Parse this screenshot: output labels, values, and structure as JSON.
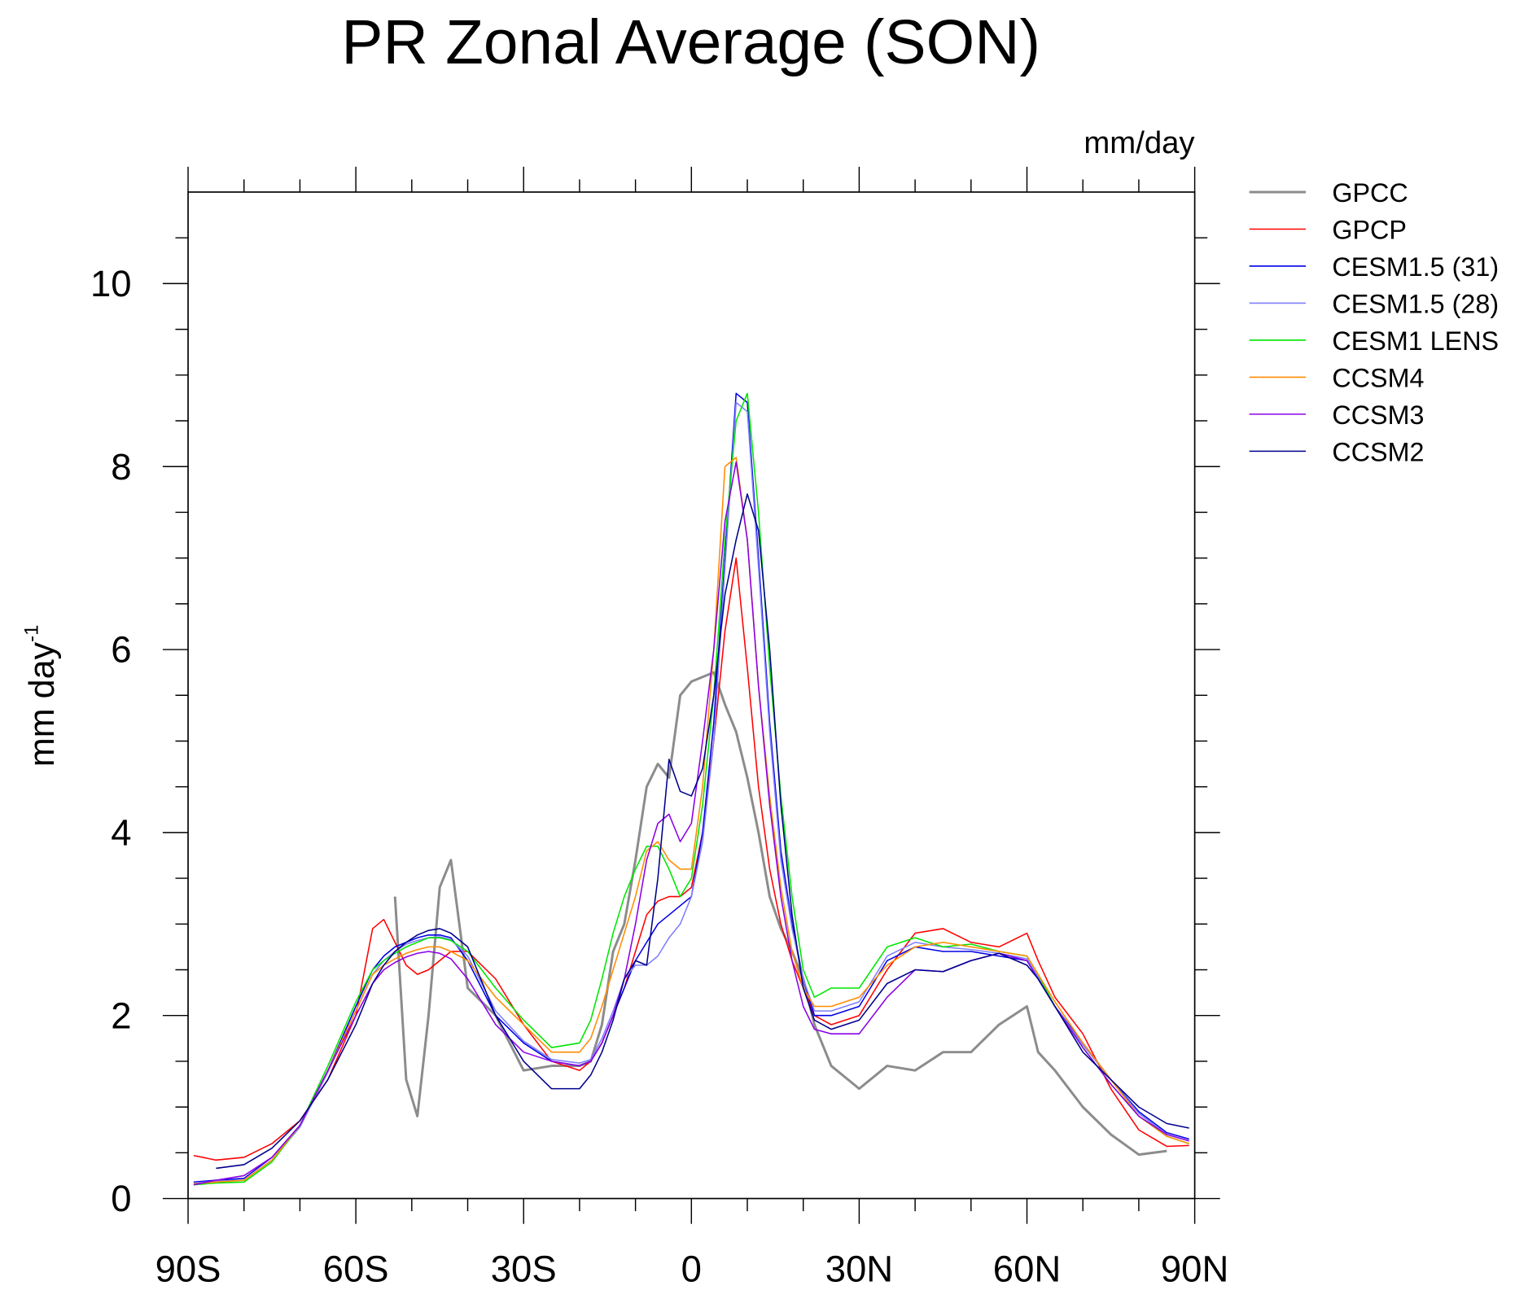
{
  "chart_data": {
    "type": "line",
    "title": "PR Zonal Average (SON)",
    "units": "mm/day",
    "ylabel": "mm day",
    "ylabel_sup": "-1",
    "xlim": [
      -90,
      90
    ],
    "ylim": [
      0,
      11
    ],
    "xticks": [
      {
        "value": -90,
        "label": "90S"
      },
      {
        "value": -60,
        "label": "60S"
      },
      {
        "value": -30,
        "label": "30S"
      },
      0,
      {
        "value": 30,
        "label": "30N"
      },
      {
        "value": 60,
        "label": "60N"
      },
      {
        "value": 90,
        "label": "90N"
      }
    ],
    "yticks": [
      0,
      2,
      4,
      6,
      8,
      10
    ],
    "legend": "outside-right",
    "x": [
      -89,
      -85,
      -80,
      -75,
      -70,
      -65,
      -60,
      -57,
      -55,
      -53,
      -51,
      -49,
      -47,
      -45,
      -43,
      -40,
      -35,
      -30,
      -25,
      -20,
      -18,
      -16,
      -14,
      -12,
      -10,
      -8,
      -6,
      -4,
      -2,
      0,
      2,
      4,
      6,
      8,
      10,
      12,
      14,
      16,
      18,
      20,
      22,
      25,
      30,
      35,
      40,
      45,
      50,
      55,
      60,
      62,
      65,
      70,
      75,
      80,
      85,
      89
    ],
    "series": [
      {
        "name": "GPCC",
        "color": "#8c8c8c",
        "width": 2.5,
        "values": [
          null,
          null,
          null,
          null,
          null,
          null,
          null,
          null,
          null,
          3.3,
          1.3,
          0.9,
          2.0,
          3.4,
          3.7,
          2.3,
          2.0,
          1.4,
          1.45,
          1.45,
          1.5,
          1.9,
          2.7,
          3.0,
          3.7,
          4.5,
          4.75,
          4.6,
          5.5,
          5.65,
          5.7,
          5.75,
          5.4,
          5.1,
          4.6,
          4.0,
          3.3,
          2.95,
          2.7,
          2.4,
          1.9,
          1.45,
          1.2,
          1.45,
          1.4,
          1.6,
          1.6,
          1.9,
          2.1,
          1.6,
          1.4,
          1.0,
          0.7,
          0.48,
          0.52,
          null
        ]
      },
      {
        "name": "GPCP",
        "color": "#ff0000",
        "width": 1.3,
        "values": [
          0.47,
          0.42,
          0.45,
          0.6,
          0.85,
          1.3,
          2.0,
          2.95,
          3.05,
          2.8,
          2.55,
          2.45,
          2.5,
          2.6,
          2.7,
          2.7,
          2.4,
          1.9,
          1.5,
          1.4,
          1.5,
          1.7,
          2.0,
          2.3,
          2.7,
          3.1,
          3.25,
          3.3,
          3.3,
          3.4,
          4.0,
          5.0,
          6.2,
          7.0,
          5.8,
          4.5,
          3.6,
          3.0,
          2.6,
          2.3,
          2.0,
          1.9,
          2.0,
          2.5,
          2.9,
          2.95,
          2.8,
          2.75,
          2.9,
          2.6,
          2.2,
          1.8,
          1.2,
          0.75,
          0.57,
          0.58
        ]
      },
      {
        "name": "CESM1.5 (31)",
        "color": "#0000e6",
        "width": 1.3,
        "values": [
          0.18,
          0.2,
          0.22,
          0.45,
          0.8,
          1.4,
          2.1,
          2.5,
          2.65,
          2.75,
          2.8,
          2.85,
          2.88,
          2.88,
          2.85,
          2.6,
          2.0,
          1.7,
          1.5,
          1.45,
          1.5,
          1.7,
          2.0,
          2.3,
          2.6,
          2.8,
          3.0,
          3.1,
          3.2,
          3.3,
          4.0,
          5.2,
          7.0,
          8.8,
          8.7,
          7.0,
          5.2,
          3.8,
          3.0,
          2.4,
          2.0,
          2.0,
          2.1,
          2.6,
          2.75,
          2.7,
          2.7,
          2.65,
          2.6,
          2.4,
          2.1,
          1.7,
          1.3,
          0.95,
          0.72,
          0.65
        ]
      },
      {
        "name": "CESM1.5 (28)",
        "color": "#7f7fff",
        "width": 1.3,
        "values": [
          0.17,
          0.19,
          0.2,
          0.42,
          0.78,
          1.38,
          2.05,
          2.45,
          2.6,
          2.7,
          2.78,
          2.82,
          2.85,
          2.86,
          2.83,
          2.65,
          2.05,
          1.72,
          1.52,
          1.48,
          1.52,
          1.75,
          2.05,
          2.4,
          2.55,
          2.55,
          2.65,
          2.85,
          3.0,
          3.3,
          3.9,
          5.0,
          6.9,
          8.7,
          8.6,
          6.9,
          5.1,
          3.7,
          2.95,
          2.4,
          2.05,
          2.05,
          2.15,
          2.65,
          2.8,
          2.75,
          2.72,
          2.68,
          2.62,
          2.42,
          2.1,
          1.68,
          1.3,
          0.93,
          0.7,
          0.63
        ]
      },
      {
        "name": "CESM1 LENS",
        "color": "#00e600",
        "width": 1.3,
        "values": [
          0.15,
          0.17,
          0.18,
          0.4,
          0.8,
          1.45,
          2.15,
          2.5,
          2.6,
          2.68,
          2.75,
          2.8,
          2.85,
          2.85,
          2.82,
          2.7,
          2.3,
          1.95,
          1.65,
          1.7,
          1.95,
          2.4,
          2.9,
          3.3,
          3.6,
          3.85,
          3.85,
          3.6,
          3.3,
          3.5,
          4.3,
          5.5,
          7.2,
          8.5,
          8.8,
          7.5,
          5.8,
          4.4,
          3.3,
          2.5,
          2.2,
          2.3,
          2.3,
          2.75,
          2.85,
          2.75,
          2.78,
          2.7,
          2.65,
          2.45,
          2.1,
          1.65,
          1.25,
          0.9,
          0.68,
          0.6
        ]
      },
      {
        "name": "CCSM4",
        "color": "#ff8c00",
        "width": 1.3,
        "values": [
          0.16,
          0.18,
          0.2,
          0.42,
          0.8,
          1.4,
          2.05,
          2.45,
          2.55,
          2.62,
          2.68,
          2.72,
          2.75,
          2.75,
          2.7,
          2.6,
          2.2,
          1.9,
          1.6,
          1.6,
          1.75,
          2.1,
          2.5,
          2.9,
          3.3,
          3.8,
          3.9,
          3.7,
          3.6,
          3.6,
          4.5,
          6.0,
          8.0,
          8.1,
          7.2,
          5.6,
          4.4,
          3.4,
          2.7,
          2.3,
          2.1,
          2.1,
          2.2,
          2.55,
          2.75,
          2.8,
          2.75,
          2.7,
          2.65,
          2.45,
          2.15,
          1.7,
          1.3,
          0.9,
          0.68,
          0.6
        ]
      },
      {
        "name": "CCSM3",
        "color": "#8c00e6",
        "width": 1.3,
        "values": [
          0.15,
          0.2,
          0.25,
          0.45,
          0.8,
          1.4,
          2.0,
          2.35,
          2.5,
          2.58,
          2.64,
          2.68,
          2.7,
          2.68,
          2.62,
          2.4,
          1.9,
          1.6,
          1.5,
          1.45,
          1.5,
          1.7,
          2.0,
          2.4,
          3.0,
          3.7,
          4.1,
          4.2,
          3.9,
          4.1,
          5.0,
          6.0,
          7.4,
          8.05,
          7.2,
          5.6,
          4.3,
          3.3,
          2.6,
          2.1,
          1.85,
          1.8,
          1.8,
          2.2,
          2.5,
          2.48,
          2.6,
          2.68,
          2.6,
          2.4,
          2.1,
          1.65,
          1.25,
          0.9,
          0.7,
          0.63
        ]
      },
      {
        "name": "CCSM2",
        "color": "#00008c",
        "width": 1.3,
        "values": [
          null,
          0.33,
          0.37,
          0.55,
          0.85,
          1.3,
          1.9,
          2.35,
          2.55,
          2.7,
          2.8,
          2.88,
          2.93,
          2.95,
          2.9,
          2.75,
          2.0,
          1.5,
          1.2,
          1.2,
          1.35,
          1.6,
          1.95,
          2.4,
          2.6,
          2.55,
          3.5,
          4.8,
          4.45,
          4.4,
          4.7,
          5.5,
          6.6,
          7.2,
          7.7,
          7.3,
          6.0,
          4.3,
          3.1,
          2.3,
          1.95,
          1.85,
          1.95,
          2.35,
          2.5,
          2.48,
          2.6,
          2.68,
          2.55,
          2.4,
          2.1,
          1.6,
          1.3,
          1.0,
          0.82,
          0.77
        ]
      }
    ]
  }
}
